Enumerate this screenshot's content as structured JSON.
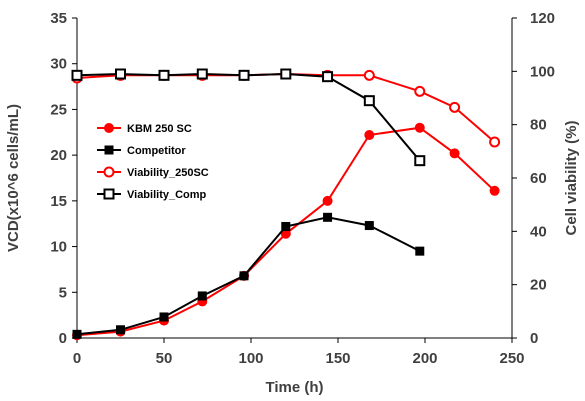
{
  "chart_data": {
    "type": "line",
    "title": "",
    "xlabel": "Time (h)",
    "ylabel": "VCD(x10^6 cells/mL)",
    "y2label": "Cell viability (%)",
    "xlim": [
      0,
      250
    ],
    "ylim": [
      0,
      35
    ],
    "y2lim": [
      0,
      120
    ],
    "x_ticks": [
      "0",
      "50",
      "100",
      "150",
      "200",
      "250"
    ],
    "y_ticks": [
      "0",
      "5",
      "10",
      "15",
      "20",
      "25",
      "30",
      "35"
    ],
    "y2_ticks": [
      "0",
      "20",
      "40",
      "60",
      "80",
      "100",
      "120"
    ],
    "grid": false,
    "legend_position": "left",
    "series": [
      {
        "name": "KBM 250 SC",
        "axis": "left",
        "marker": "circle-filled",
        "color": "#ff0000",
        "points": [
          [
            0,
            0.3
          ],
          [
            25,
            0.7
          ],
          [
            50,
            1.9
          ],
          [
            72,
            4.0
          ],
          [
            96,
            6.8
          ],
          [
            120,
            11.4
          ],
          [
            144,
            15.0
          ],
          [
            168,
            22.2
          ],
          [
            197,
            23.0
          ],
          [
            217,
            20.2
          ],
          [
            240,
            16.1
          ]
        ]
      },
      {
        "name": "Competitor",
        "axis": "left",
        "marker": "square-filled",
        "color": "#000000",
        "points": [
          [
            0,
            0.4
          ],
          [
            25,
            0.9
          ],
          [
            50,
            2.3
          ],
          [
            72,
            4.6
          ],
          [
            96,
            6.8
          ],
          [
            120,
            12.2
          ],
          [
            144,
            13.2
          ],
          [
            168,
            12.3
          ],
          [
            197,
            9.5
          ]
        ]
      },
      {
        "name": "Viability_250SC",
        "axis": "right",
        "marker": "circle-open",
        "color": "#ff0000",
        "points": [
          [
            0,
            97.5
          ],
          [
            25,
            98.5
          ],
          [
            50,
            98.5
          ],
          [
            72,
            98.5
          ],
          [
            96,
            98.5
          ],
          [
            120,
            99.0
          ],
          [
            144,
            98.5
          ],
          [
            168,
            98.5
          ],
          [
            197,
            92.5
          ],
          [
            217,
            86.5
          ],
          [
            240,
            73.5
          ]
        ]
      },
      {
        "name": "Viability_Comp",
        "axis": "right",
        "marker": "square-open",
        "color": "#000000",
        "points": [
          [
            0,
            98.5
          ],
          [
            25,
            99.0
          ],
          [
            50,
            98.5
          ],
          [
            72,
            99.0
          ],
          [
            96,
            98.5
          ],
          [
            120,
            99.0
          ],
          [
            144,
            98.0
          ],
          [
            168,
            89.0
          ],
          [
            197,
            66.5
          ]
        ]
      }
    ]
  }
}
